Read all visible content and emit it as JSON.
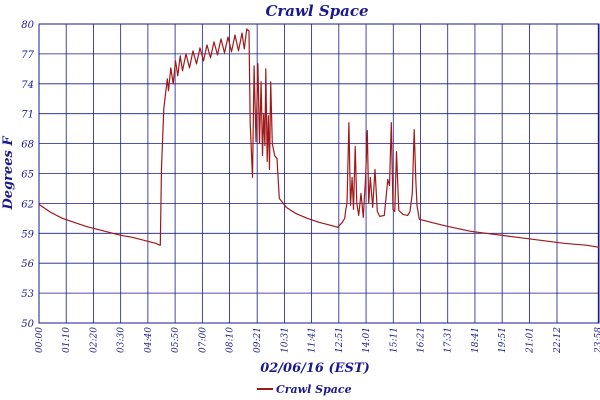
{
  "chart_data": {
    "type": "line",
    "title": "Crawl Space",
    "xlabel": "02/06/16 (EST)",
    "ylabel": "Degrees F",
    "ylim": [
      50,
      80
    ],
    "yticks": [
      50,
      53,
      56,
      59,
      62,
      65,
      68,
      71,
      74,
      77,
      80
    ],
    "xlim_hours": [
      0,
      24
    ],
    "xticks": [
      {
        "h": 0.0,
        "label": "00:00"
      },
      {
        "h": 1.1667,
        "label": "01:10"
      },
      {
        "h": 2.3333,
        "label": "02:20"
      },
      {
        "h": 3.5,
        "label": "03:30"
      },
      {
        "h": 4.6667,
        "label": "04:40"
      },
      {
        "h": 5.8333,
        "label": "05:50"
      },
      {
        "h": 7.0,
        "label": "07:00"
      },
      {
        "h": 8.1667,
        "label": "08:10"
      },
      {
        "h": 9.35,
        "label": "09:21"
      },
      {
        "h": 10.5167,
        "label": "10:31"
      },
      {
        "h": 11.6833,
        "label": "11:41"
      },
      {
        "h": 12.85,
        "label": "12:51"
      },
      {
        "h": 14.0167,
        "label": "14:01"
      },
      {
        "h": 15.1833,
        "label": "15:11"
      },
      {
        "h": 16.35,
        "label": "16:21"
      },
      {
        "h": 17.5167,
        "label": "17:31"
      },
      {
        "h": 18.6833,
        "label": "18:41"
      },
      {
        "h": 19.85,
        "label": "19:51"
      },
      {
        "h": 21.0167,
        "label": "21:01"
      },
      {
        "h": 22.2,
        "label": "22:12"
      },
      {
        "h": 23.9667,
        "label": "23:58"
      }
    ],
    "grid": true,
    "legend": "bottom-left",
    "series": [
      {
        "name": "Crawl Space",
        "color": "#a01818",
        "points": [
          [
            0.0,
            61.9
          ],
          [
            0.5,
            61.1
          ],
          [
            1.0,
            60.5
          ],
          [
            1.5,
            60.1
          ],
          [
            2.0,
            59.7
          ],
          [
            2.5,
            59.4
          ],
          [
            3.0,
            59.1
          ],
          [
            3.5,
            58.8
          ],
          [
            4.0,
            58.6
          ],
          [
            4.5,
            58.3
          ],
          [
            5.0,
            58.0
          ],
          [
            5.2,
            57.8
          ],
          [
            5.25,
            65.5
          ],
          [
            5.35,
            71.5
          ],
          [
            5.5,
            74.5
          ],
          [
            5.55,
            73.3
          ],
          [
            5.65,
            75.6
          ],
          [
            5.75,
            74.0
          ],
          [
            5.85,
            76.3
          ],
          [
            5.95,
            74.8
          ],
          [
            6.05,
            76.8
          ],
          [
            6.15,
            75.3
          ],
          [
            6.3,
            77.0
          ],
          [
            6.45,
            75.6
          ],
          [
            6.6,
            77.3
          ],
          [
            6.75,
            76.0
          ],
          [
            6.9,
            77.6
          ],
          [
            7.05,
            76.3
          ],
          [
            7.2,
            77.9
          ],
          [
            7.35,
            76.6
          ],
          [
            7.5,
            78.2
          ],
          [
            7.65,
            76.9
          ],
          [
            7.8,
            78.5
          ],
          [
            7.95,
            77.1
          ],
          [
            8.1,
            78.7
          ],
          [
            8.25,
            77.2
          ],
          [
            8.4,
            78.9
          ],
          [
            8.55,
            77.3
          ],
          [
            8.7,
            79.1
          ],
          [
            8.8,
            77.5
          ],
          [
            8.9,
            79.5
          ],
          [
            9.0,
            79.3
          ],
          [
            9.05,
            70.0
          ],
          [
            9.15,
            64.6
          ],
          [
            9.22,
            75.8
          ],
          [
            9.3,
            68.2
          ],
          [
            9.38,
            76.0
          ],
          [
            9.45,
            68.0
          ],
          [
            9.52,
            74.2
          ],
          [
            9.58,
            66.8
          ],
          [
            9.63,
            71.0
          ],
          [
            9.68,
            67.8
          ],
          [
            9.72,
            75.5
          ],
          [
            9.78,
            66.2
          ],
          [
            9.83,
            70.8
          ],
          [
            9.88,
            65.4
          ],
          [
            9.93,
            74.2
          ],
          [
            10.0,
            68.0
          ],
          [
            10.1,
            66.8
          ],
          [
            10.2,
            66.5
          ],
          [
            10.3,
            62.5
          ],
          [
            10.6,
            61.6
          ],
          [
            11.0,
            61.0
          ],
          [
            11.5,
            60.5
          ],
          [
            12.0,
            60.1
          ],
          [
            12.5,
            59.8
          ],
          [
            12.8,
            59.6
          ],
          [
            13.0,
            60.1
          ],
          [
            13.1,
            60.5
          ],
          [
            13.15,
            61.4
          ],
          [
            13.2,
            62.0
          ],
          [
            13.28,
            70.1
          ],
          [
            13.35,
            61.8
          ],
          [
            13.42,
            64.6
          ],
          [
            13.48,
            61.4
          ],
          [
            13.55,
            67.7
          ],
          [
            13.62,
            62.0
          ],
          [
            13.7,
            60.8
          ],
          [
            13.8,
            63.0
          ],
          [
            13.9,
            60.6
          ],
          [
            14.0,
            64.8
          ],
          [
            14.07,
            69.3
          ],
          [
            14.13,
            62.0
          ],
          [
            14.2,
            64.6
          ],
          [
            14.3,
            61.6
          ],
          [
            14.4,
            65.4
          ],
          [
            14.5,
            61.2
          ],
          [
            14.6,
            60.7
          ],
          [
            14.8,
            60.8
          ],
          [
            14.95,
            64.4
          ],
          [
            15.02,
            63.8
          ],
          [
            15.1,
            70.1
          ],
          [
            15.17,
            61.4
          ],
          [
            15.25,
            61.2
          ],
          [
            15.32,
            67.2
          ],
          [
            15.42,
            61.3
          ],
          [
            15.6,
            60.9
          ],
          [
            15.8,
            60.8
          ],
          [
            15.9,
            61.2
          ],
          [
            16.0,
            63.0
          ],
          [
            16.08,
            69.4
          ],
          [
            16.15,
            64.4
          ],
          [
            16.2,
            61.8
          ],
          [
            16.3,
            60.4
          ],
          [
            16.8,
            60.1
          ],
          [
            17.5,
            59.7
          ],
          [
            18.5,
            59.2
          ],
          [
            19.5,
            58.9
          ],
          [
            20.5,
            58.6
          ],
          [
            21.5,
            58.3
          ],
          [
            22.5,
            58.0
          ],
          [
            23.5,
            57.8
          ],
          [
            24.0,
            57.6
          ]
        ]
      }
    ]
  }
}
